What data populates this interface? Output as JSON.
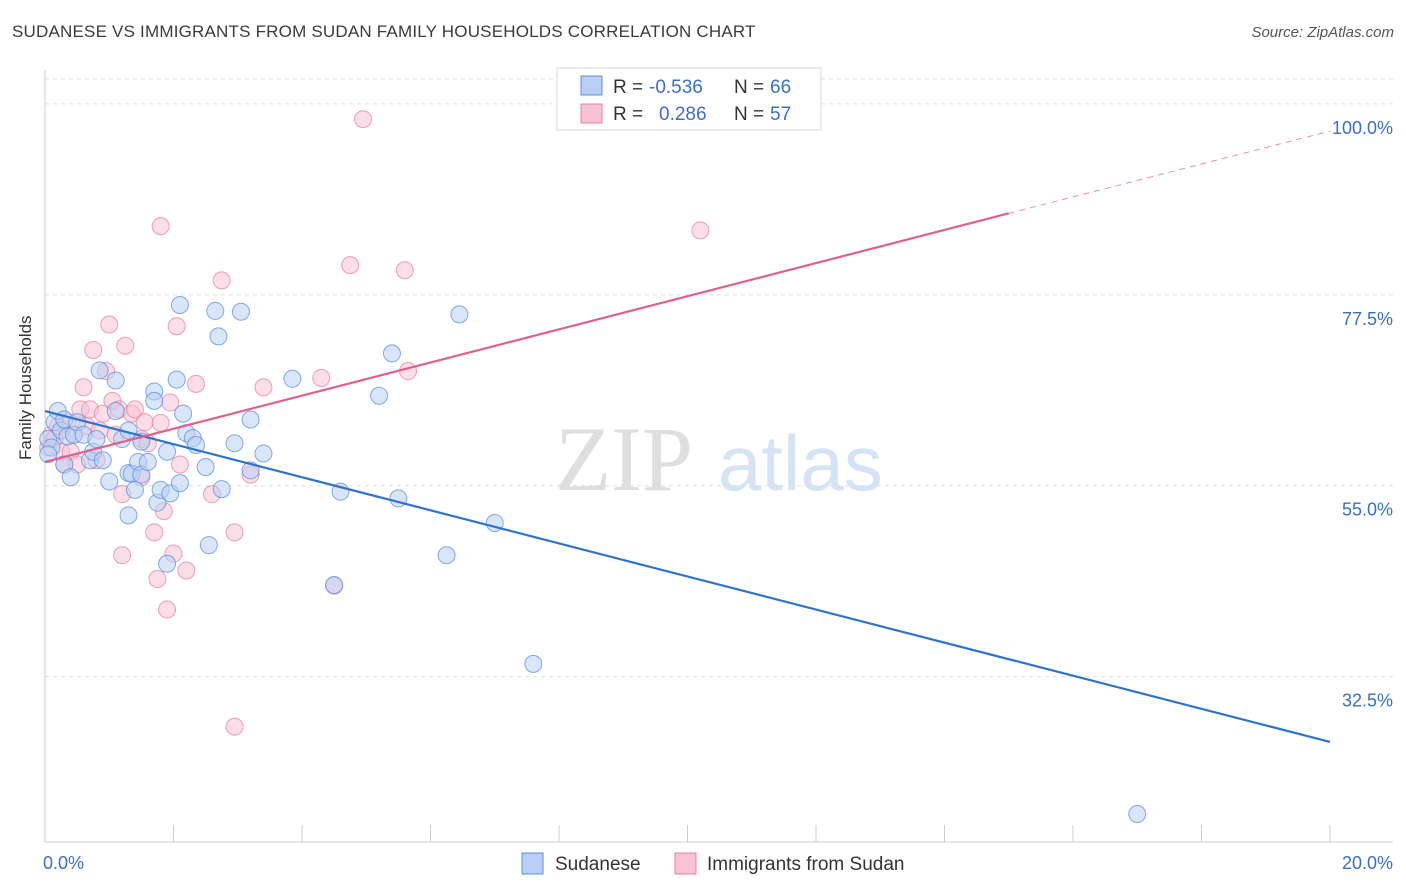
{
  "header": {
    "title": "SUDANESE VS IMMIGRANTS FROM SUDAN FAMILY HOUSEHOLDS CORRELATION CHART",
    "source": "Source: ZipAtlas.com"
  },
  "watermark": {
    "zip": "ZIP",
    "atlas": "atlas"
  },
  "colors": {
    "blue": "#5b8fe0",
    "blue_fill": "#b9d0f4",
    "blue_line": "#2f73d0",
    "pink": "#e87fa2",
    "pink_fill": "#f7c3d3",
    "pink_line": "#e0608c",
    "tick_label": "#3a6fc4",
    "grid": "#dddddd"
  },
  "legend_box": {
    "rows": [
      {
        "r_label": "R =",
        "r_value": "-0.536",
        "n_label": "N =",
        "n_value": "66"
      },
      {
        "r_label": "R =",
        "r_value": "0.286",
        "n_label": "N =",
        "n_value": "57"
      }
    ]
  },
  "chart_data": {
    "type": "scatter",
    "title": "SUDANESE VS IMMIGRANTS FROM SUDAN FAMILY HOUSEHOLDS CORRELATION CHART",
    "xlabel": "",
    "ylabel": "Family Households",
    "xlim": [
      0,
      20
    ],
    "ylim": [
      13,
      104
    ],
    "x_tick_labels": [
      "0.0%",
      "20.0%"
    ],
    "y_ticks": [
      32.5,
      55.0,
      77.5,
      100.0
    ],
    "y_tick_labels": [
      "32.5%",
      "55.0%",
      "77.5%",
      "100.0%"
    ],
    "legend": [
      "Sudanese",
      "Immigrants from Sudan"
    ],
    "series": [
      {
        "name": "Sudanese",
        "r": -0.536,
        "n": 66,
        "trend": {
          "x0": 0,
          "y0": 63.8,
          "x1": 20,
          "y1": 24.8,
          "dashed_from": null
        },
        "points": [
          [
            0.05,
            60.5
          ],
          [
            0.1,
            59.5
          ],
          [
            0.15,
            62.5
          ],
          [
            0.2,
            63.8
          ],
          [
            0.25,
            61.5
          ],
          [
            0.3,
            57.5
          ],
          [
            0.3,
            62.8
          ],
          [
            0.35,
            60.8
          ],
          [
            0.4,
            56
          ],
          [
            0.45,
            61
          ],
          [
            0.5,
            62.5
          ],
          [
            0.6,
            61
          ],
          [
            0.7,
            58
          ],
          [
            0.75,
            59
          ],
          [
            0.8,
            60.5
          ],
          [
            0.9,
            58
          ],
          [
            1.0,
            55.5
          ],
          [
            0.85,
            68.6
          ],
          [
            1.1,
            67.4
          ],
          [
            1.1,
            63.8
          ],
          [
            1.2,
            60.5
          ],
          [
            1.3,
            61.5
          ],
          [
            1.3,
            56.5
          ],
          [
            1.3,
            51.5
          ],
          [
            1.35,
            56.4
          ],
          [
            1.4,
            54.5
          ],
          [
            1.45,
            57.8
          ],
          [
            1.5,
            60.2
          ],
          [
            1.5,
            56.3
          ],
          [
            1.6,
            57.8
          ],
          [
            1.7,
            66.1
          ],
          [
            1.7,
            65
          ],
          [
            1.75,
            53
          ],
          [
            1.8,
            54.5
          ],
          [
            1.9,
            59
          ],
          [
            1.9,
            45.8
          ],
          [
            1.95,
            54.1
          ],
          [
            2.05,
            67.5
          ],
          [
            2.1,
            55.3
          ],
          [
            2.1,
            76.3
          ],
          [
            2.15,
            63.5
          ],
          [
            2.2,
            61.2
          ],
          [
            2.3,
            60.6
          ],
          [
            2.35,
            59.8
          ],
          [
            2.5,
            57.2
          ],
          [
            2.55,
            48
          ],
          [
            2.65,
            75.6
          ],
          [
            2.7,
            72.6
          ],
          [
            2.75,
            54.6
          ],
          [
            2.95,
            60
          ],
          [
            3.05,
            75.5
          ],
          [
            3.2,
            62.8
          ],
          [
            3.2,
            56.8
          ],
          [
            3.4,
            58.8
          ],
          [
            3.85,
            67.6
          ],
          [
            4.5,
            43.3
          ],
          [
            4.6,
            54.3
          ],
          [
            5.2,
            65.6
          ],
          [
            5.4,
            70.6
          ],
          [
            5.5,
            53.5
          ],
          [
            6.25,
            46.8
          ],
          [
            6.45,
            75.2
          ],
          [
            7.0,
            50.6
          ],
          [
            7.6,
            34
          ],
          [
            17.0,
            16.3
          ],
          [
            0.05,
            58.7
          ]
        ]
      },
      {
        "name": "Immigrants from Sudan",
        "r": 0.286,
        "n": 57,
        "trend": {
          "x0": 0,
          "y0": 57.8,
          "x1": 15.0,
          "y1": 87.1,
          "dashed_from": 15.0,
          "dash_x1": 20,
          "dash_y1": 96.8
        },
        "points": [
          [
            0.05,
            59.5
          ],
          [
            0.1,
            61
          ],
          [
            0.15,
            60.5
          ],
          [
            0.2,
            62
          ],
          [
            0.25,
            59
          ],
          [
            0.3,
            57.5
          ],
          [
            0.35,
            62.5
          ],
          [
            0.4,
            59
          ],
          [
            0.45,
            61
          ],
          [
            0.5,
            57.5
          ],
          [
            0.55,
            64
          ],
          [
            0.6,
            66.6
          ],
          [
            0.65,
            62
          ],
          [
            0.7,
            64
          ],
          [
            0.75,
            71
          ],
          [
            0.8,
            58
          ],
          [
            0.85,
            61.5
          ],
          [
            0.9,
            63.5
          ],
          [
            0.95,
            68.5
          ],
          [
            1.0,
            74
          ],
          [
            1.05,
            65
          ],
          [
            1.1,
            61
          ],
          [
            1.15,
            64
          ],
          [
            1.2,
            54
          ],
          [
            1.2,
            46.8
          ],
          [
            1.25,
            71.5
          ],
          [
            1.35,
            63.5
          ],
          [
            1.4,
            64
          ],
          [
            1.5,
            56
          ],
          [
            1.5,
            60.5
          ],
          [
            1.55,
            62.5
          ],
          [
            1.6,
            60
          ],
          [
            1.7,
            49.5
          ],
          [
            1.75,
            44
          ],
          [
            1.8,
            62.4
          ],
          [
            1.8,
            85.6
          ],
          [
            1.85,
            52
          ],
          [
            1.9,
            40.4
          ],
          [
            1.95,
            64.8
          ],
          [
            2.0,
            47
          ],
          [
            2.05,
            73.8
          ],
          [
            2.1,
            57.5
          ],
          [
            2.2,
            45
          ],
          [
            2.35,
            67
          ],
          [
            2.6,
            54
          ],
          [
            2.75,
            79.2
          ],
          [
            2.95,
            49.5
          ],
          [
            2.95,
            26.6
          ],
          [
            3.2,
            56.3
          ],
          [
            3.4,
            66.6
          ],
          [
            4.3,
            67.7
          ],
          [
            4.5,
            43.2
          ],
          [
            4.75,
            81
          ],
          [
            4.95,
            98.2
          ],
          [
            5.6,
            80.4
          ],
          [
            5.65,
            68.5
          ],
          [
            10.2,
            85.1
          ]
        ]
      }
    ]
  }
}
